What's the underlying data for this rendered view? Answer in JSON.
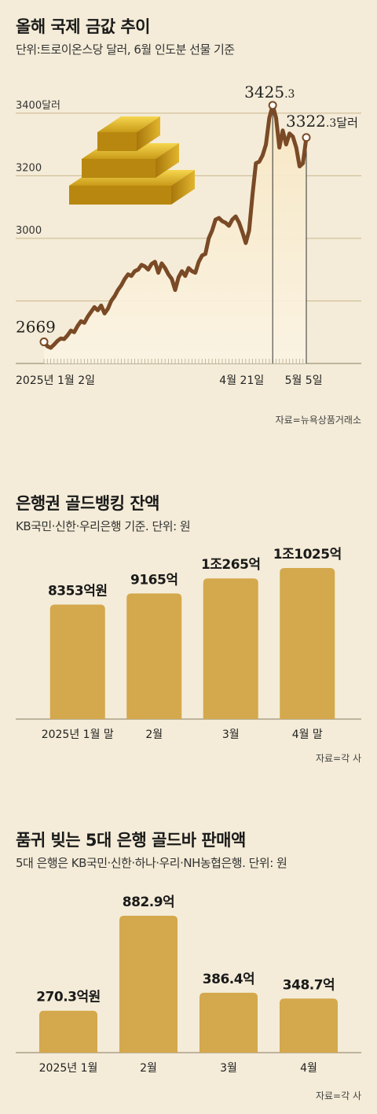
{
  "charts": {
    "gold": {
      "title": "올해 국제 금값 추이",
      "subtitle": "단위:트로이온스당 달러, 6월 인도분 선물 기준",
      "source": "자료=뉴욕상품거래소",
      "start_label": "2669",
      "peak_label_main": "3425",
      "peak_label_dec": ".3",
      "end_label_main": "3322",
      "end_label_dec": ".3",
      "end_label_unit": "달러"
    },
    "balance": {
      "title": "은행권 골드뱅킹 잔액",
      "subtitle": "KB국민·신한·우리은행 기준. 단위: 원",
      "source": "자료=각 사"
    },
    "sales": {
      "title": "품귀 빚는 5대 은행 골드바 판매액",
      "subtitle": "5대 은행은 KB국민·신한·하나·우리·NH농협은행. 단위: 원",
      "source": "자료=각 사"
    }
  },
  "colors": {
    "background": "#f4ecd8",
    "line": "#7a4a26",
    "bar": "#d4a84c",
    "grid": "#c9b68c"
  },
  "chart_data": [
    {
      "type": "line",
      "y_ticks": [
        "3400달러",
        "3200",
        "3000"
      ],
      "y_tick_values": [
        3400,
        3200,
        3000
      ],
      "ylim": [
        2600,
        3450
      ],
      "x_tick_labels": [
        "2025년 1월 2일",
        "4월 21일",
        "5월 5일"
      ],
      "x_tick_indices": [
        0,
        63,
        73
      ],
      "series": [
        {
          "values": [
            2669,
            2655,
            2650,
            2660,
            2672,
            2680,
            2678,
            2690,
            2705,
            2700,
            2720,
            2735,
            2730,
            2750,
            2765,
            2780,
            2770,
            2785,
            2760,
            2775,
            2800,
            2815,
            2835,
            2850,
            2870,
            2885,
            2880,
            2895,
            2900,
            2915,
            2910,
            2900,
            2918,
            2925,
            2890,
            2920,
            2905,
            2885,
            2870,
            2835,
            2875,
            2895,
            2880,
            2905,
            2895,
            2890,
            2925,
            2945,
            2950,
            3000,
            3025,
            3060,
            3065,
            3055,
            3050,
            3040,
            3060,
            3070,
            3050,
            3020,
            2985,
            3025,
            3140,
            3240,
            3245,
            3265,
            3300,
            3385,
            3425.3,
            3385,
            3290,
            3345,
            3300,
            3335,
            3325,
            3290,
            3230,
            3240,
            3322.3
          ]
        }
      ],
      "annotations": [
        {
          "label": "2669",
          "value": 2669
        },
        {
          "label": "3425.3",
          "value": 3425.3
        },
        {
          "label": "3322.3달러",
          "value": 3322.3
        }
      ]
    },
    {
      "type": "bar",
      "categories": [
        "2025년 1월 말",
        "2월",
        "3월",
        "4월 말"
      ],
      "values": [
        8353,
        9165,
        10265,
        11025
      ],
      "value_labels": [
        "8353억원",
        "9165억",
        "1조265억",
        "1조1025억"
      ]
    },
    {
      "type": "bar",
      "categories": [
        "2025년 1월",
        "2월",
        "3월",
        "4월"
      ],
      "values": [
        270.3,
        882.9,
        386.4,
        348.7
      ],
      "value_labels": [
        "270.3억원",
        "882.9억",
        "386.4억",
        "348.7억"
      ]
    }
  ]
}
